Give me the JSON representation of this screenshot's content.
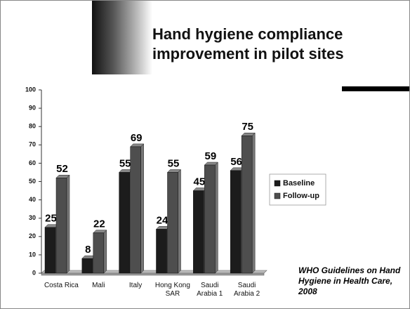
{
  "title": "Hand hygiene compliance improvement in pilot sites",
  "citation": "WHO Guidelines on Hand Hygiene in Health Care, 2008",
  "chart_data": {
    "type": "bar",
    "categories": [
      "Costa Rica",
      "Mali",
      "Italy",
      "Hong Kong SAR",
      "Saudi Arabia 1",
      "Saudi Arabia 2"
    ],
    "series": [
      {
        "name": "Baseline",
        "color": "#1c1c1c",
        "values": [
          25,
          8,
          55,
          24,
          45,
          56
        ]
      },
      {
        "name": "Follow-up",
        "color": "#4e4e4e",
        "values": [
          52,
          22,
          69,
          55,
          59,
          75
        ]
      }
    ],
    "ylim": [
      0,
      100
    ],
    "yticks": [
      0,
      10,
      20,
      30,
      40,
      50,
      60,
      70,
      80,
      90,
      100
    ],
    "grid": false,
    "legend": "right"
  }
}
